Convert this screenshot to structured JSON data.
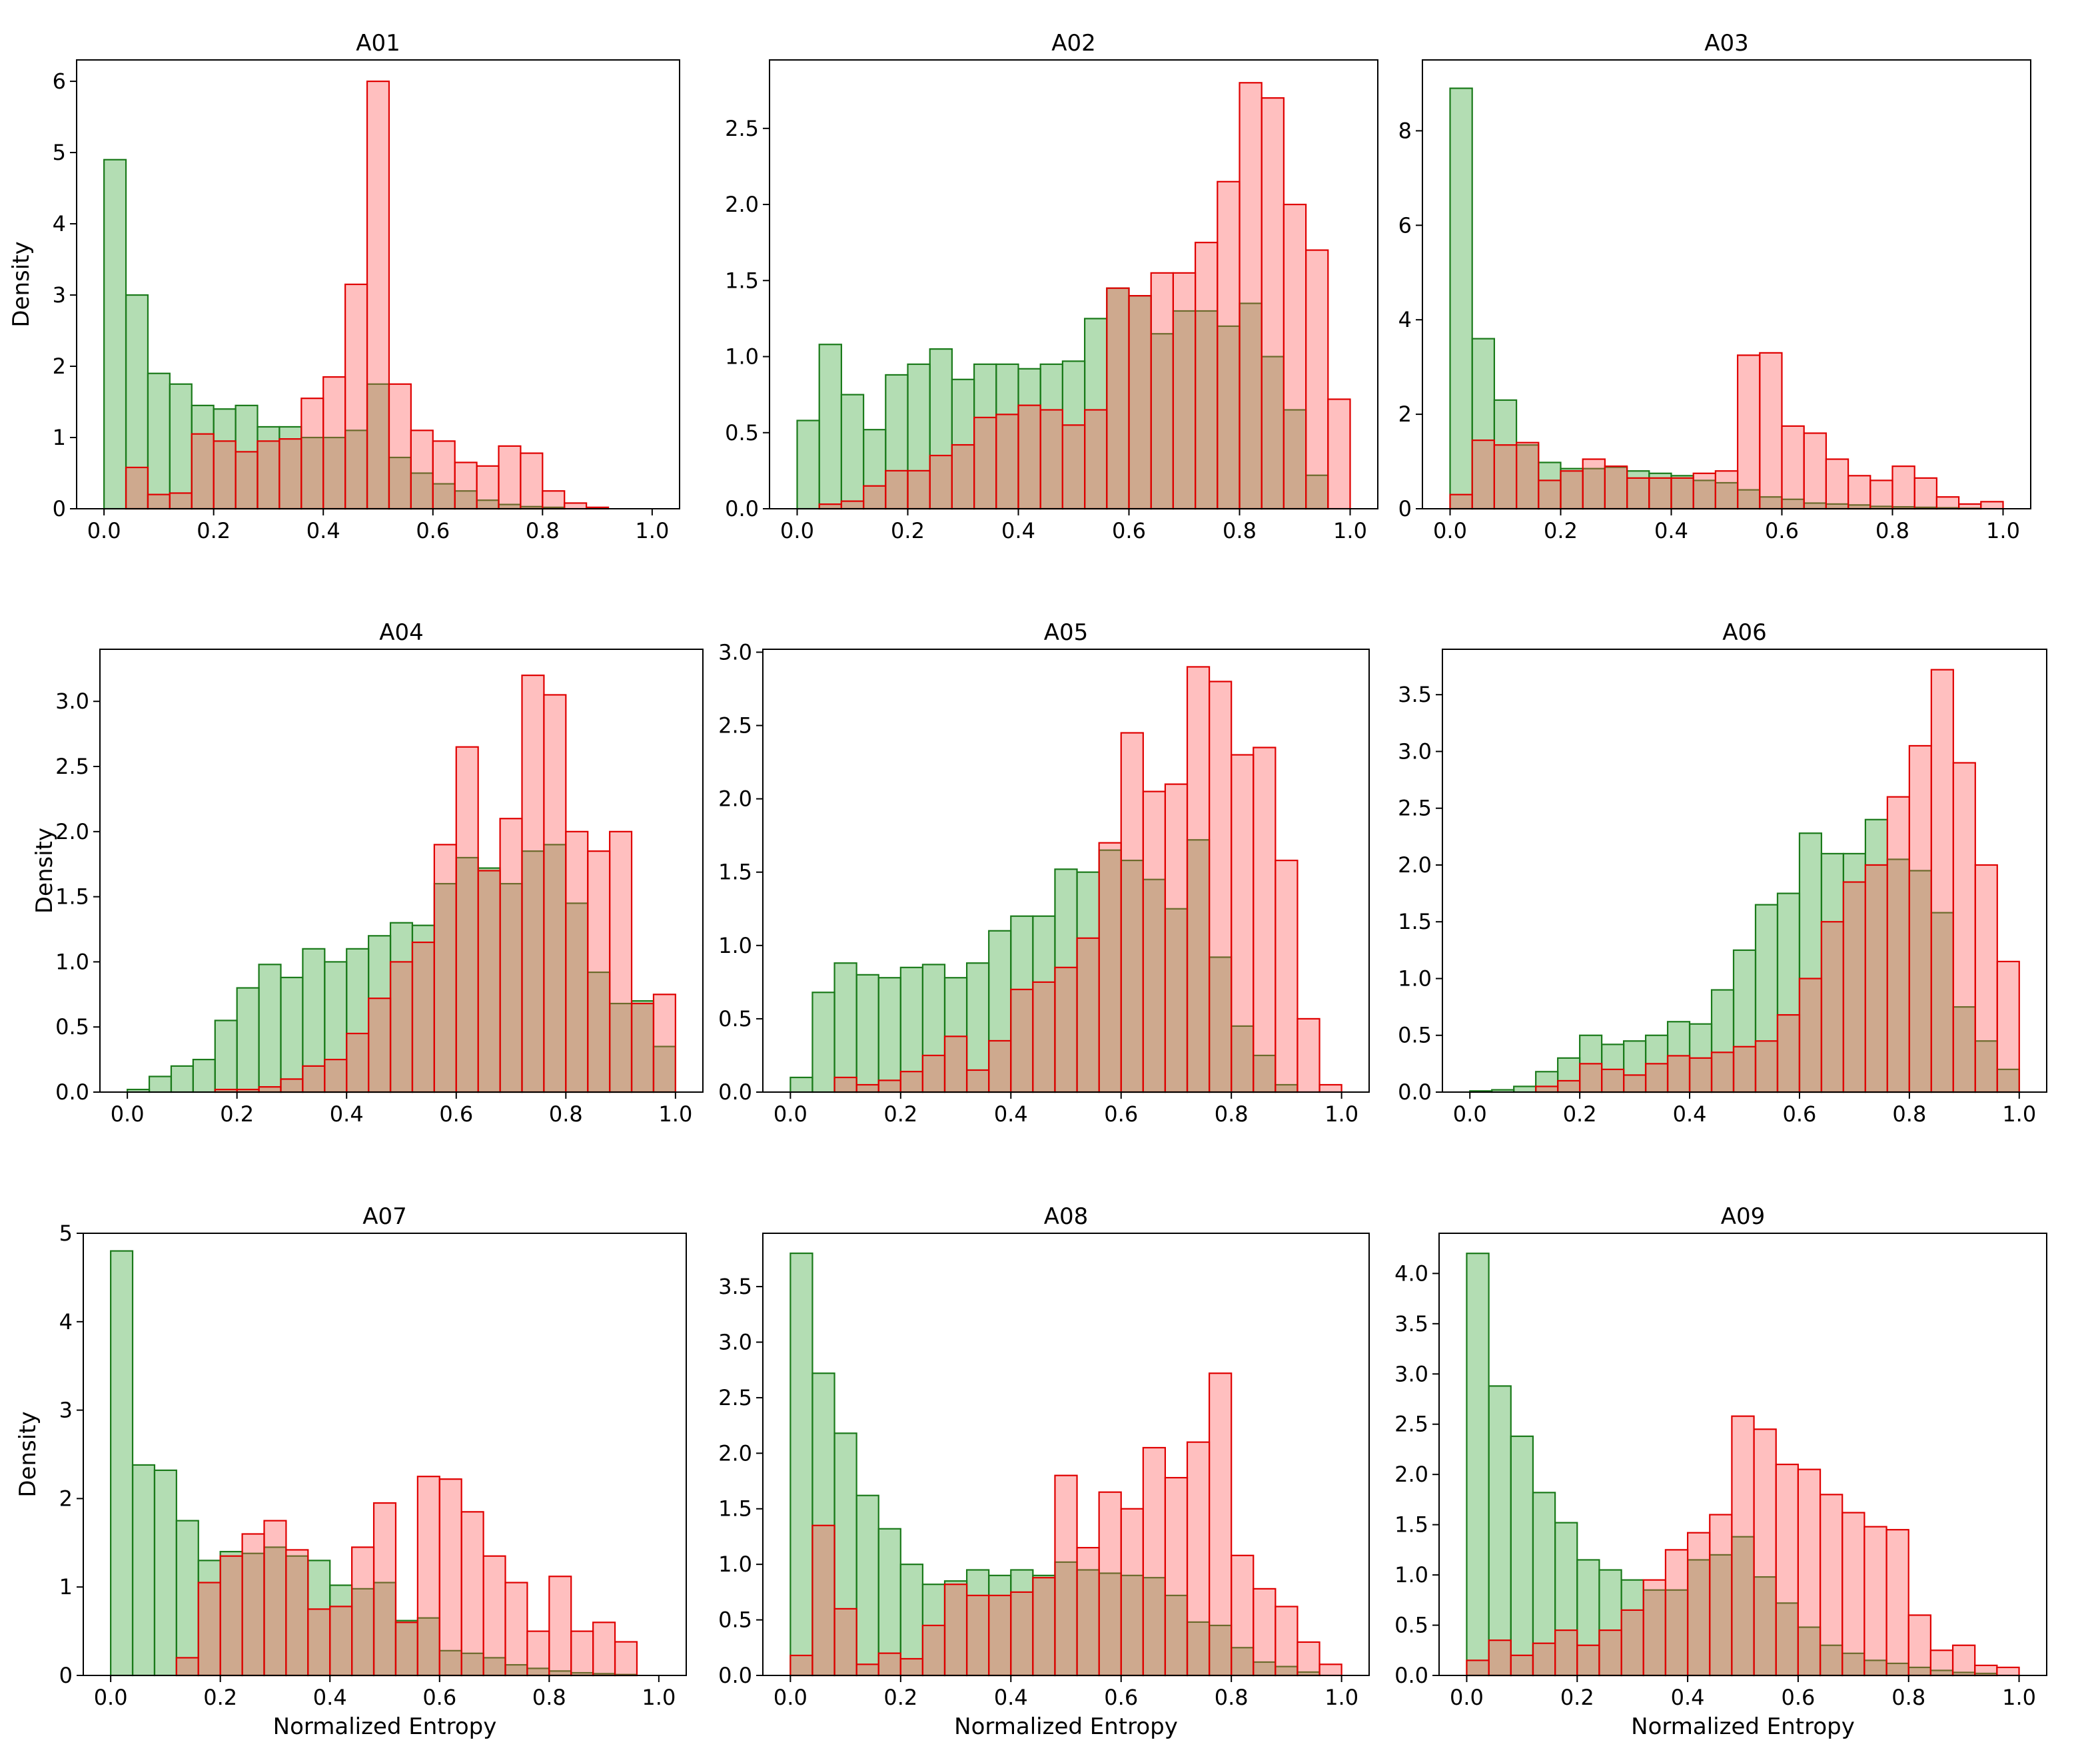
{
  "figure": {
    "background": "#ffffff"
  },
  "colors": {
    "green_fill": "#2ca02c",
    "green_edge": "#1a7a1a",
    "red_fill": "#ff4d4d",
    "red_edge": "#e00000"
  },
  "chart_data": [
    {
      "type": "bar",
      "title": "A01",
      "xlabel": "",
      "ylabel": "Density",
      "xlim": [
        -0.05,
        1.05
      ],
      "ylim": [
        0,
        6.3
      ],
      "xticks": [
        0.0,
        0.2,
        0.4,
        0.6,
        0.8,
        1.0
      ],
      "xtick_labels": [
        "0.0",
        "0.2",
        "0.4",
        "0.6",
        "0.8",
        "1.0"
      ],
      "yticks": [
        0,
        1,
        2,
        3,
        4,
        5,
        6
      ],
      "ytick_labels": [
        "0",
        "1",
        "2",
        "3",
        "4",
        "5",
        "6"
      ],
      "bin_width": 0.04,
      "series": [
        {
          "name": "green",
          "values": [
            4.9,
            3.0,
            1.9,
            1.75,
            1.45,
            1.4,
            1.45,
            1.15,
            1.15,
            1.0,
            1.0,
            1.1,
            1.75,
            0.72,
            0.5,
            0.35,
            0.25,
            0.12,
            0.06,
            0.03,
            0.02,
            0.0,
            0.0,
            0.0,
            0.0
          ]
        },
        {
          "name": "red",
          "values": [
            0,
            0.58,
            0.2,
            0.22,
            1.05,
            0.95,
            0.8,
            0.95,
            0.98,
            1.55,
            1.85,
            3.15,
            6.0,
            1.75,
            1.1,
            0.95,
            0.65,
            0.6,
            0.88,
            0.78,
            0.25,
            0.08,
            0.02,
            0.0,
            0.0
          ]
        }
      ]
    },
    {
      "type": "bar",
      "title": "A02",
      "xlabel": "",
      "ylabel": "",
      "xlim": [
        -0.05,
        1.05
      ],
      "ylim": [
        0,
        2.95
      ],
      "xticks": [
        0.0,
        0.2,
        0.4,
        0.6,
        0.8,
        1.0
      ],
      "xtick_labels": [
        "0.0",
        "0.2",
        "0.4",
        "0.6",
        "0.8",
        "1.0"
      ],
      "yticks": [
        0.0,
        0.5,
        1.0,
        1.5,
        2.0,
        2.5
      ],
      "ytick_labels": [
        "0.0",
        "0.5",
        "1.0",
        "1.5",
        "2.0",
        "2.5"
      ],
      "bin_width": 0.04,
      "series": [
        {
          "name": "green",
          "values": [
            0.58,
            1.08,
            0.75,
            0.52,
            0.88,
            0.95,
            1.05,
            0.85,
            0.95,
            0.95,
            0.92,
            0.95,
            0.97,
            1.25,
            1.45,
            1.4,
            1.15,
            1.3,
            1.3,
            1.2,
            1.35,
            1.0,
            0.65,
            0.22,
            0.0
          ]
        },
        {
          "name": "red",
          "values": [
            0,
            0.03,
            0.05,
            0.15,
            0.25,
            0.25,
            0.35,
            0.42,
            0.6,
            0.62,
            0.68,
            0.65,
            0.55,
            0.65,
            1.45,
            1.4,
            1.55,
            1.55,
            1.75,
            2.15,
            2.8,
            2.7,
            2.0,
            1.7,
            0.72
          ]
        }
      ]
    },
    {
      "type": "bar",
      "title": "A03",
      "xlabel": "",
      "ylabel": "",
      "xlim": [
        -0.05,
        1.05
      ],
      "ylim": [
        0,
        9.5
      ],
      "xticks": [
        0.0,
        0.2,
        0.4,
        0.6,
        0.8,
        1.0
      ],
      "xtick_labels": [
        "0.0",
        "0.2",
        "0.4",
        "0.6",
        "0.8",
        "1.0"
      ],
      "yticks": [
        0,
        2,
        4,
        6,
        8
      ],
      "ytick_labels": [
        "0",
        "2",
        "4",
        "6",
        "8"
      ],
      "bin_width": 0.04,
      "series": [
        {
          "name": "green",
          "values": [
            8.9,
            3.6,
            2.3,
            1.35,
            0.98,
            0.85,
            0.85,
            0.88,
            0.8,
            0.75,
            0.7,
            0.6,
            0.55,
            0.4,
            0.25,
            0.2,
            0.12,
            0.1,
            0.08,
            0.05,
            0.04,
            0.03,
            0.02,
            0.01,
            0.0
          ]
        },
        {
          "name": "red",
          "values": [
            0.3,
            1.45,
            1.35,
            1.4,
            0.6,
            0.8,
            1.05,
            0.9,
            0.65,
            0.65,
            0.65,
            0.75,
            0.8,
            3.25,
            3.3,
            1.75,
            1.6,
            1.05,
            0.7,
            0.6,
            0.9,
            0.65,
            0.25,
            0.1,
            0.15
          ]
        }
      ]
    },
    {
      "type": "bar",
      "title": "A04",
      "xlabel": "",
      "ylabel": "Density",
      "xlim": [
        -0.05,
        1.05
      ],
      "ylim": [
        0,
        3.4
      ],
      "xticks": [
        0.0,
        0.2,
        0.4,
        0.6,
        0.8,
        1.0
      ],
      "xtick_labels": [
        "0.0",
        "0.2",
        "0.4",
        "0.6",
        "0.8",
        "1.0"
      ],
      "yticks": [
        0.0,
        0.5,
        1.0,
        1.5,
        2.0,
        2.5,
        3.0
      ],
      "ytick_labels": [
        "0.0",
        "0.5",
        "1.0",
        "1.5",
        "2.0",
        "2.5",
        "3.0"
      ],
      "bin_width": 0.04,
      "series": [
        {
          "name": "green",
          "values": [
            0.02,
            0.12,
            0.2,
            0.25,
            0.55,
            0.8,
            0.98,
            0.88,
            1.1,
            1.0,
            1.1,
            1.2,
            1.3,
            1.28,
            1.6,
            1.8,
            1.72,
            1.6,
            1.85,
            1.9,
            1.45,
            0.92,
            0.68,
            0.7,
            0.35
          ]
        },
        {
          "name": "red",
          "values": [
            0,
            0,
            0,
            0,
            0.02,
            0.02,
            0.04,
            0.1,
            0.2,
            0.25,
            0.45,
            0.72,
            1.0,
            1.15,
            1.9,
            2.65,
            1.7,
            2.1,
            3.2,
            3.05,
            2.0,
            1.85,
            2.0,
            0.68,
            0.75
          ]
        }
      ]
    },
    {
      "type": "bar",
      "title": "A05",
      "xlabel": "",
      "ylabel": "",
      "xlim": [
        -0.05,
        1.05
      ],
      "ylim": [
        0,
        3.02
      ],
      "xticks": [
        0.0,
        0.2,
        0.4,
        0.6,
        0.8,
        1.0
      ],
      "xtick_labels": [
        "0.0",
        "0.2",
        "0.4",
        "0.6",
        "0.8",
        "1.0"
      ],
      "yticks": [
        0.0,
        0.5,
        1.0,
        1.5,
        2.0,
        2.5,
        3.0
      ],
      "ytick_labels": [
        "0.0",
        "0.5",
        "1.0",
        "1.5",
        "2.0",
        "2.5",
        "3.0"
      ],
      "bin_width": 0.04,
      "series": [
        {
          "name": "green",
          "values": [
            0.1,
            0.68,
            0.88,
            0.8,
            0.78,
            0.85,
            0.87,
            0.78,
            0.88,
            1.1,
            1.2,
            1.2,
            1.52,
            1.5,
            1.65,
            1.58,
            1.45,
            1.25,
            1.72,
            0.92,
            0.45,
            0.25,
            0.05,
            0.0,
            0.0
          ]
        },
        {
          "name": "red",
          "values": [
            0,
            0,
            0.1,
            0.05,
            0.08,
            0.14,
            0.25,
            0.38,
            0.15,
            0.35,
            0.7,
            0.75,
            0.85,
            1.05,
            1.7,
            2.45,
            2.05,
            2.1,
            2.9,
            2.8,
            2.3,
            2.35,
            1.58,
            0.5,
            0.05
          ]
        }
      ]
    },
    {
      "type": "bar",
      "title": "A06",
      "xlabel": "",
      "ylabel": "",
      "xlim": [
        -0.05,
        1.05
      ],
      "ylim": [
        0,
        3.9
      ],
      "xticks": [
        0.0,
        0.2,
        0.4,
        0.6,
        0.8,
        1.0
      ],
      "xtick_labels": [
        "0.0",
        "0.2",
        "0.4",
        "0.6",
        "0.8",
        "1.0"
      ],
      "yticks": [
        0.0,
        0.5,
        1.0,
        1.5,
        2.0,
        2.5,
        3.0,
        3.5
      ],
      "ytick_labels": [
        "0.0",
        "0.5",
        "1.0",
        "1.5",
        "2.0",
        "2.5",
        "3.0",
        "3.5"
      ],
      "bin_width": 0.04,
      "series": [
        {
          "name": "green",
          "values": [
            0.01,
            0.02,
            0.05,
            0.18,
            0.3,
            0.5,
            0.42,
            0.45,
            0.5,
            0.62,
            0.6,
            0.9,
            1.25,
            1.65,
            1.75,
            2.28,
            2.1,
            2.1,
            2.4,
            2.05,
            1.95,
            1.58,
            0.75,
            0.45,
            0.2
          ]
        },
        {
          "name": "red",
          "values": [
            0,
            0,
            0,
            0.05,
            0.1,
            0.25,
            0.2,
            0.15,
            0.25,
            0.32,
            0.3,
            0.35,
            0.4,
            0.45,
            0.68,
            1.0,
            1.5,
            1.85,
            2.0,
            2.6,
            3.05,
            3.72,
            2.9,
            2.0,
            1.15
          ]
        }
      ]
    },
    {
      "type": "bar",
      "title": "A07",
      "xlabel": "Normalized Entropy",
      "ylabel": "Density",
      "xlim": [
        -0.05,
        1.05
      ],
      "ylim": [
        0,
        5.0
      ],
      "xticks": [
        0.0,
        0.2,
        0.4,
        0.6,
        0.8,
        1.0
      ],
      "xtick_labels": [
        "0.0",
        "0.2",
        "0.4",
        "0.6",
        "0.8",
        "1.0"
      ],
      "yticks": [
        0,
        1,
        2,
        3,
        4,
        5
      ],
      "ytick_labels": [
        "0",
        "1",
        "2",
        "3",
        "4",
        "5"
      ],
      "bin_width": 0.04,
      "series": [
        {
          "name": "green",
          "values": [
            4.8,
            2.38,
            2.32,
            1.75,
            1.3,
            1.4,
            1.38,
            1.45,
            1.35,
            1.3,
            1.02,
            0.98,
            1.05,
            0.62,
            0.65,
            0.28,
            0.25,
            0.2,
            0.12,
            0.08,
            0.05,
            0.03,
            0.02,
            0.01,
            0.0
          ]
        },
        {
          "name": "red",
          "values": [
            0,
            0,
            0,
            0.2,
            1.05,
            1.35,
            1.6,
            1.75,
            1.42,
            0.75,
            0.78,
            1.45,
            1.95,
            0.6,
            2.25,
            2.22,
            1.85,
            1.35,
            1.05,
            0.5,
            1.12,
            0.5,
            0.6,
            0.38,
            0.0
          ]
        }
      ]
    },
    {
      "type": "bar",
      "title": "A08",
      "xlabel": "Normalized Entropy",
      "ylabel": "",
      "xlim": [
        -0.05,
        1.05
      ],
      "ylim": [
        0,
        3.98
      ],
      "xticks": [
        0.0,
        0.2,
        0.4,
        0.6,
        0.8,
        1.0
      ],
      "xtick_labels": [
        "0.0",
        "0.2",
        "0.4",
        "0.6",
        "0.8",
        "1.0"
      ],
      "yticks": [
        0.0,
        0.5,
        1.0,
        1.5,
        2.0,
        2.5,
        3.0,
        3.5
      ],
      "ytick_labels": [
        "0.0",
        "0.5",
        "1.0",
        "1.5",
        "2.0",
        "2.5",
        "3.0",
        "3.5"
      ],
      "bin_width": 0.04,
      "series": [
        {
          "name": "green",
          "values": [
            3.8,
            2.72,
            2.18,
            1.62,
            1.32,
            1.0,
            0.82,
            0.85,
            0.95,
            0.9,
            0.95,
            0.9,
            1.02,
            0.95,
            0.92,
            0.9,
            0.88,
            0.72,
            0.48,
            0.45,
            0.25,
            0.12,
            0.08,
            0.03,
            0.0
          ]
        },
        {
          "name": "red",
          "values": [
            0.18,
            1.35,
            0.6,
            0.1,
            0.2,
            0.15,
            0.45,
            0.82,
            0.72,
            0.72,
            0.75,
            0.88,
            1.8,
            1.15,
            1.65,
            1.5,
            2.05,
            1.78,
            2.1,
            2.72,
            1.08,
            0.78,
            0.62,
            0.3,
            0.1
          ]
        }
      ]
    },
    {
      "type": "bar",
      "title": "A09",
      "xlabel": "Normalized Entropy",
      "ylabel": "",
      "xlim": [
        -0.05,
        1.05
      ],
      "ylim": [
        0,
        4.4
      ],
      "xticks": [
        0.0,
        0.2,
        0.4,
        0.6,
        0.8,
        1.0
      ],
      "xtick_labels": [
        "0.0",
        "0.2",
        "0.4",
        "0.6",
        "0.8",
        "1.0"
      ],
      "yticks": [
        0.0,
        0.5,
        1.0,
        1.5,
        2.0,
        2.5,
        3.0,
        3.5,
        4.0
      ],
      "ytick_labels": [
        "0.0",
        "0.5",
        "1.0",
        "1.5",
        "2.0",
        "2.5",
        "3.0",
        "3.5",
        "4.0"
      ],
      "bin_width": 0.04,
      "series": [
        {
          "name": "green",
          "values": [
            4.2,
            2.88,
            2.38,
            1.82,
            1.52,
            1.15,
            1.05,
            0.95,
            0.85,
            0.85,
            1.15,
            1.2,
            1.38,
            0.98,
            0.72,
            0.48,
            0.3,
            0.22,
            0.15,
            0.12,
            0.08,
            0.05,
            0.03,
            0.02,
            0.0
          ]
        },
        {
          "name": "red",
          "values": [
            0.15,
            0.35,
            0.2,
            0.32,
            0.45,
            0.3,
            0.45,
            0.65,
            0.95,
            1.25,
            1.42,
            1.6,
            2.58,
            2.45,
            2.1,
            2.05,
            1.8,
            1.62,
            1.48,
            1.45,
            0.6,
            0.25,
            0.3,
            0.1,
            0.08
          ]
        }
      ]
    }
  ]
}
